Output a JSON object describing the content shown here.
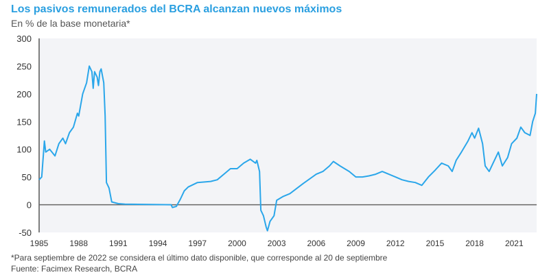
{
  "chart_data": {
    "type": "line",
    "title": "Los pasivos remunerados del BCRA alcanzan nuevos máximos",
    "subtitle": "En % de la base monetaria*",
    "xlabel": "",
    "ylabel": "",
    "xlim": [
      1985,
      2022.7
    ],
    "ylim": [
      -50,
      300
    ],
    "yticks": [
      "300",
      "250",
      "200",
      "150",
      "100",
      "50",
      "0",
      "-50"
    ],
    "ytick_values": [
      300,
      250,
      200,
      150,
      100,
      50,
      0,
      -50
    ],
    "xticks": [
      "1985",
      "1988",
      "1991",
      "1994",
      "1997",
      "2000",
      "2003",
      "2006",
      "2009",
      "2012",
      "2015",
      "2018",
      "2021"
    ],
    "xtick_values": [
      1985,
      1988,
      1991,
      1994,
      1997,
      2000,
      2003,
      2006,
      2009,
      2012,
      2015,
      2018,
      2021
    ],
    "line_color": "#2aa6ea",
    "series": [
      {
        "name": "Pasivos remunerados",
        "points": [
          [
            1985.0,
            45
          ],
          [
            1985.2,
            50
          ],
          [
            1985.4,
            115
          ],
          [
            1985.5,
            95
          ],
          [
            1985.8,
            100
          ],
          [
            1986.2,
            88
          ],
          [
            1986.5,
            110
          ],
          [
            1986.8,
            120
          ],
          [
            1987.0,
            110
          ],
          [
            1987.3,
            130
          ],
          [
            1987.6,
            140
          ],
          [
            1987.9,
            165
          ],
          [
            1988.0,
            160
          ],
          [
            1988.3,
            200
          ],
          [
            1988.6,
            220
          ],
          [
            1988.8,
            250
          ],
          [
            1989.0,
            240
          ],
          [
            1989.1,
            210
          ],
          [
            1989.2,
            240
          ],
          [
            1989.4,
            230
          ],
          [
            1989.5,
            215
          ],
          [
            1989.6,
            240
          ],
          [
            1989.7,
            245
          ],
          [
            1989.9,
            220
          ],
          [
            1990.0,
            160
          ],
          [
            1990.1,
            40
          ],
          [
            1990.3,
            30
          ],
          [
            1990.5,
            5
          ],
          [
            1991.0,
            2
          ],
          [
            1991.5,
            1
          ],
          [
            1995.0,
            0
          ],
          [
            1995.1,
            -5
          ],
          [
            1995.4,
            -3
          ],
          [
            1995.7,
            10
          ],
          [
            1996.0,
            25
          ],
          [
            1996.3,
            32
          ],
          [
            1997.0,
            40
          ],
          [
            1998.0,
            42
          ],
          [
            1998.5,
            45
          ],
          [
            1999.0,
            55
          ],
          [
            1999.5,
            65
          ],
          [
            2000.0,
            65
          ],
          [
            2000.5,
            75
          ],
          [
            2001.0,
            82
          ],
          [
            2001.4,
            75
          ],
          [
            2001.5,
            80
          ],
          [
            2001.7,
            60
          ],
          [
            2001.8,
            -10
          ],
          [
            2002.0,
            -20
          ],
          [
            2002.2,
            -40
          ],
          [
            2002.3,
            -47
          ],
          [
            2002.5,
            -30
          ],
          [
            2002.8,
            -20
          ],
          [
            2003.0,
            8
          ],
          [
            2003.5,
            15
          ],
          [
            2004.0,
            20
          ],
          [
            2005.0,
            38
          ],
          [
            2006.0,
            55
          ],
          [
            2006.5,
            60
          ],
          [
            2007.0,
            70
          ],
          [
            2007.3,
            78
          ],
          [
            2007.8,
            70
          ],
          [
            2008.5,
            60
          ],
          [
            2009.0,
            50
          ],
          [
            2009.5,
            50
          ],
          [
            2010.0,
            52
          ],
          [
            2010.5,
            55
          ],
          [
            2011.0,
            60
          ],
          [
            2011.5,
            55
          ],
          [
            2012.0,
            50
          ],
          [
            2012.5,
            45
          ],
          [
            2013.0,
            42
          ],
          [
            2013.5,
            40
          ],
          [
            2014.0,
            35
          ],
          [
            2014.5,
            50
          ],
          [
            2015.0,
            62
          ],
          [
            2015.5,
            75
          ],
          [
            2016.0,
            70
          ],
          [
            2016.3,
            60
          ],
          [
            2016.6,
            80
          ],
          [
            2017.0,
            95
          ],
          [
            2017.5,
            115
          ],
          [
            2017.8,
            130
          ],
          [
            2018.0,
            120
          ],
          [
            2018.3,
            138
          ],
          [
            2018.6,
            110
          ],
          [
            2018.8,
            70
          ],
          [
            2019.1,
            60
          ],
          [
            2019.4,
            75
          ],
          [
            2019.8,
            95
          ],
          [
            2020.1,
            70
          ],
          [
            2020.5,
            85
          ],
          [
            2020.8,
            110
          ],
          [
            2021.2,
            120
          ],
          [
            2021.5,
            140
          ],
          [
            2021.8,
            130
          ],
          [
            2022.2,
            125
          ],
          [
            2022.4,
            150
          ],
          [
            2022.6,
            165
          ],
          [
            2022.7,
            200
          ]
        ]
      }
    ]
  },
  "footnote": "*Para septiembre de 2022 se considera el último dato disponible, que corresponde al 20 de septiembre",
  "source": "Fuente: Facimex Research, BCRA"
}
